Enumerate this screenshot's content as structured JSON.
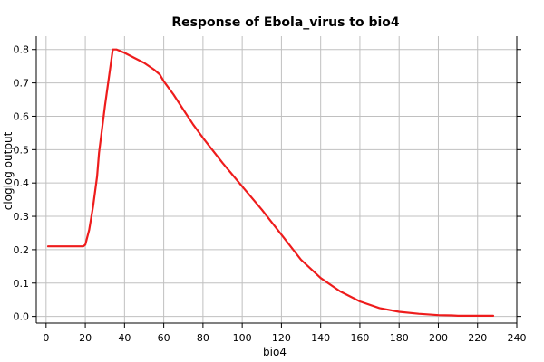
{
  "chart_data": {
    "type": "line",
    "title": "Response of Ebola_virus to bio4",
    "xlabel": "bio4",
    "ylabel": "cloglog output",
    "xlim": [
      -5,
      240
    ],
    "ylim": [
      -0.02,
      0.84
    ],
    "xticks": [
      0,
      20,
      40,
      60,
      80,
      100,
      120,
      140,
      160,
      180,
      200,
      220,
      240
    ],
    "yticks": [
      0.0,
      0.1,
      0.2,
      0.3,
      0.4,
      0.5,
      0.6,
      0.7,
      0.8
    ],
    "ytick_labels": [
      "0.0",
      "0.1",
      "0.2",
      "0.3",
      "0.4",
      "0.5",
      "0.6",
      "0.7",
      "0.8"
    ],
    "grid": true,
    "series": [
      {
        "color": "#ee1c1c",
        "x": [
          1,
          10,
          19,
          20,
          22,
          24,
          26,
          27,
          30,
          34,
          36,
          40,
          45,
          50,
          55,
          58,
          60,
          65,
          70,
          75,
          80,
          90,
          100,
          110,
          120,
          130,
          140,
          150,
          160,
          170,
          180,
          190,
          200,
          207,
          210,
          220,
          228
        ],
        "y": [
          0.21,
          0.21,
          0.21,
          0.215,
          0.26,
          0.33,
          0.42,
          0.49,
          0.63,
          0.8,
          0.8,
          0.79,
          0.775,
          0.76,
          0.74,
          0.725,
          0.705,
          0.665,
          0.62,
          0.575,
          0.535,
          0.46,
          0.39,
          0.32,
          0.245,
          0.17,
          0.115,
          0.075,
          0.045,
          0.025,
          0.014,
          0.008,
          0.004,
          0.003,
          0.002,
          0.002,
          0.002
        ]
      }
    ]
  }
}
